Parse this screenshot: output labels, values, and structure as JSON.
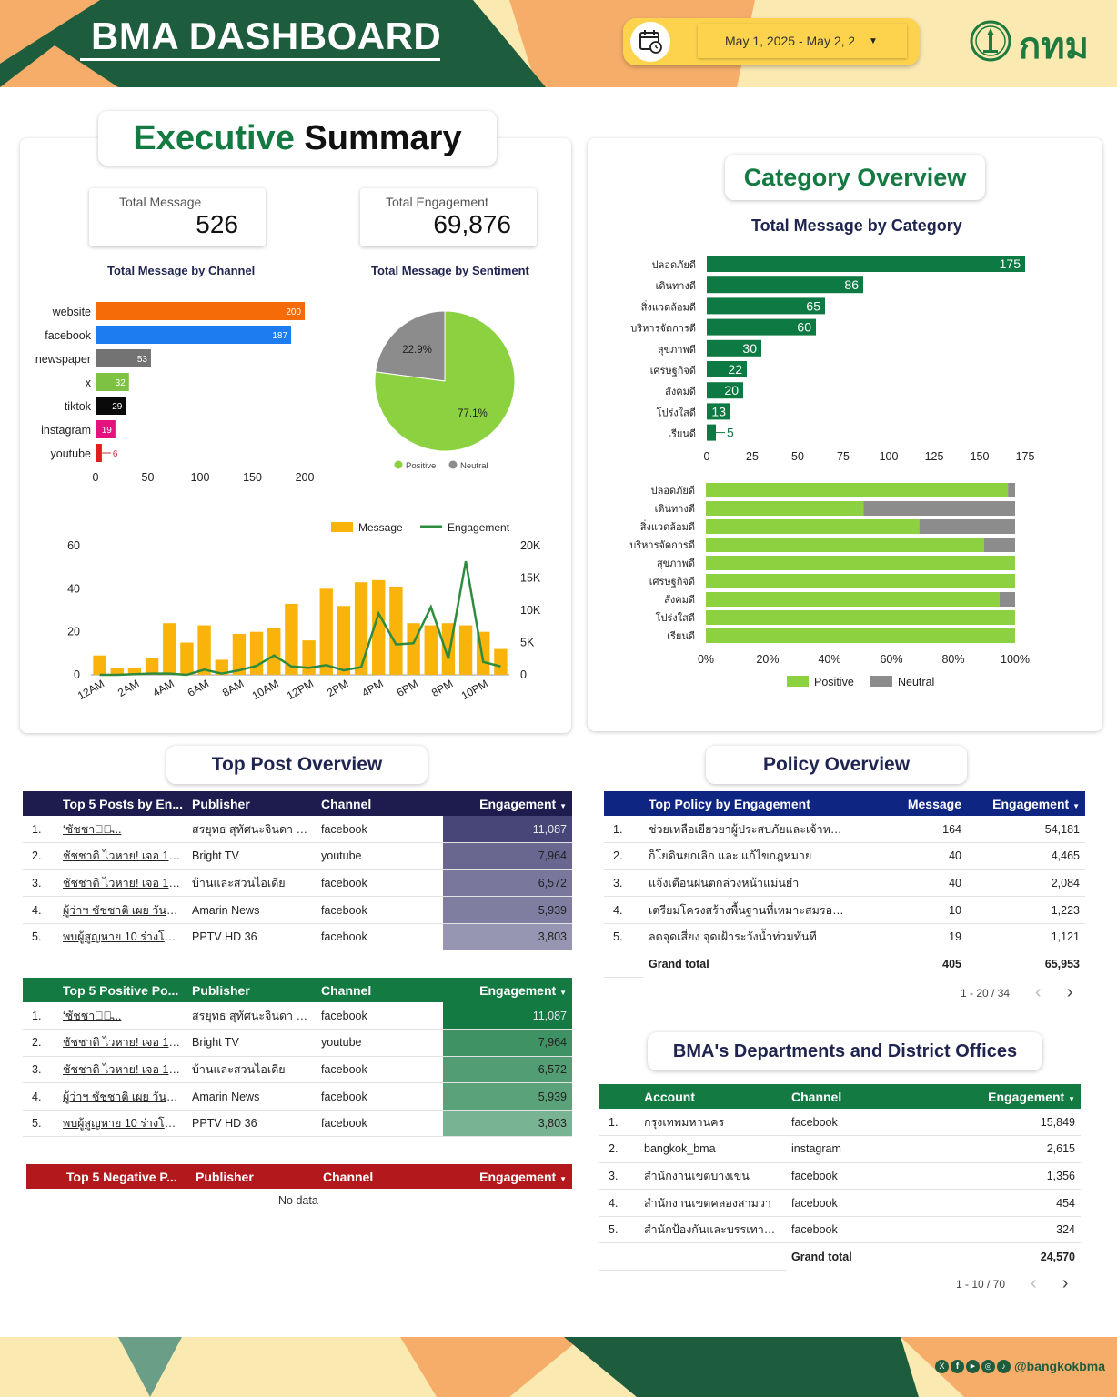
{
  "header": {
    "title": "BMA DASHBOARD",
    "date_range": "May 1, 2025 - May 2, 2",
    "logo_text": "กทม",
    "colors": {
      "green": "#1e5c3e",
      "orange": "#f6ad6a",
      "yellow": "#fbe9b2",
      "accent_yellow": "#fdd34d"
    }
  },
  "executive": {
    "title_part1": "Executive",
    "title_part2": "Summary",
    "kpis": [
      {
        "label": "Total Message",
        "value": "526"
      },
      {
        "label": "Total Engagement",
        "value": "69,876"
      }
    ]
  },
  "category": {
    "title": "Category Overview",
    "subtitle": "Total Message by Category"
  },
  "sections": {
    "top_post": "Top Post Overview",
    "policy": "Policy Overview",
    "departments": "BMA's Departments and District Offices"
  },
  "chart_data": [
    {
      "type": "bar",
      "orientation": "horizontal",
      "title": "Total Message by Channel",
      "categories": [
        "website",
        "facebook",
        "newspaper",
        "x",
        "tiktok",
        "instagram",
        "youtube"
      ],
      "values": [
        200,
        187,
        53,
        32,
        29,
        19,
        6
      ],
      "colors": [
        "#f46b08",
        "#1c7cf0",
        "#737373",
        "#7dc242",
        "#0a0a0a",
        "#e4117e",
        "#e21d1d"
      ],
      "xticks": [
        0,
        50,
        100,
        150,
        200
      ],
      "xlim": [
        0,
        200
      ]
    },
    {
      "type": "pie",
      "title": "Total Message by Sentiment",
      "slices": [
        {
          "name": "Positive",
          "value": 77.1,
          "label": "77.1%",
          "color": "#8cd13f"
        },
        {
          "name": "Neutral",
          "value": 22.9,
          "label": "22.9%",
          "color": "#8c8c8c"
        }
      ]
    },
    {
      "type": "bar+line",
      "x": [
        "12AM",
        "1AM",
        "2AM",
        "3AM",
        "4AM",
        "5AM",
        "6AM",
        "7AM",
        "8AM",
        "9AM",
        "10AM",
        "11AM",
        "12PM",
        "1PM",
        "2PM",
        "3PM",
        "4PM",
        "5PM",
        "6PM",
        "7PM",
        "8PM",
        "9PM",
        "10PM",
        "11PM"
      ],
      "xtick_labels": [
        "12AM",
        "2AM",
        "4AM",
        "6AM",
        "8AM",
        "10AM",
        "12PM",
        "2PM",
        "4PM",
        "6PM",
        "8PM",
        "10PM"
      ],
      "series": [
        {
          "name": "Message",
          "axis": "left",
          "color": "#f9b30a",
          "values": [
            9,
            3,
            3,
            8,
            24,
            15,
            23,
            7,
            19,
            20,
            22,
            33,
            16,
            40,
            32,
            43,
            44,
            41,
            24,
            23,
            24,
            23,
            20,
            12
          ]
        },
        {
          "name": "Engagement",
          "axis": "right",
          "color": "#2e8b3d",
          "values": [
            0,
            0,
            100,
            200,
            200,
            0,
            800,
            200,
            700,
            1400,
            3000,
            1300,
            1100,
            1500,
            700,
            1200,
            9500,
            4700,
            4900,
            10500,
            2500,
            17600,
            2000,
            1300
          ]
        }
      ],
      "yleft": {
        "lim": [
          0,
          60
        ],
        "ticks": [
          0,
          20,
          40,
          60
        ]
      },
      "yright": {
        "lim": [
          0,
          20000
        ],
        "ticks": [
          "0",
          "5K",
          "10K",
          "15K",
          "20K"
        ]
      }
    },
    {
      "type": "bar",
      "orientation": "horizontal",
      "title": "Total Message by Category",
      "categories": [
        "ปลอดภัยดี",
        "เดินทางดี",
        "สิ่งแวดล้อมดี",
        "บริหารจัดการดี",
        "สุขภาพดี",
        "เศรษฐกิจดี",
        "สังคมดี",
        "โปร่งใสดี",
        "เรียนดี"
      ],
      "values": [
        175,
        86,
        65,
        60,
        30,
        22,
        20,
        13,
        5
      ],
      "color": "#0e7a43",
      "xticks": [
        0,
        25,
        50,
        75,
        100,
        125,
        150,
        175
      ],
      "xlim": [
        0,
        175
      ]
    },
    {
      "type": "bar",
      "orientation": "horizontal",
      "stacked": "percent",
      "categories": [
        "ปลอดภัยดี",
        "เดินทางดี",
        "สิ่งแวดล้อมดี",
        "บริหารจัดการดี",
        "สุขภาพดี",
        "เศรษฐกิจดี",
        "สังคมดี",
        "โปร่งใสดี",
        "เรียนดี"
      ],
      "series": [
        {
          "name": "Positive",
          "color": "#8cd13f",
          "values": [
            97.7,
            51,
            69,
            90,
            100,
            100,
            95,
            100,
            100
          ]
        },
        {
          "name": "Neutral",
          "color": "#8c8c8c",
          "values": [
            2.3,
            49,
            31,
            10,
            0,
            0,
            5,
            0,
            0
          ]
        }
      ],
      "xticks": [
        "0%",
        "20%",
        "40%",
        "60%",
        "80%",
        "100%"
      ]
    }
  ],
  "tables": {
    "top_engagement": {
      "columns": [
        "Top 5 Posts by En...",
        "Publisher",
        "Channel",
        "Engagement"
      ],
      "header_color": "#1e1c4e",
      "rows": [
        {
          "idx": "1.",
          "post": "&#8216;ชัชชาติ&#821...",
          "publisher": "สรยุทธ สุทัศนะจินดา กรร...",
          "channel": "facebook",
          "engagement": "11,087",
          "level": 1.0
        },
        {
          "idx": "2.",
          "post": "ชัชชาติ ไวหาย! เจอ 10 ร่า...",
          "publisher": "Bright TV",
          "channel": "youtube",
          "engagement": "7,964",
          "level": 0.72
        },
        {
          "idx": "3.",
          "post": "ชัชชาติ ไวหาย! เจอ 10 ร่า...",
          "publisher": "บ้านและสวนไอเดีย",
          "channel": "facebook",
          "engagement": "6,572",
          "level": 0.59
        },
        {
          "idx": "4.",
          "post": "ผู้ว่าฯ ชัชชาติ เผย วันเดียว...",
          "publisher": "Amarin News",
          "channel": "facebook",
          "engagement": "5,939",
          "level": 0.54
        },
        {
          "idx": "5.",
          "post": "พบผู้สูญหาย 10 ร่างโซน ...",
          "publisher": "PPTV HD 36",
          "channel": "facebook",
          "engagement": "3,803",
          "level": 0.34
        }
      ]
    },
    "top_positive": {
      "columns": [
        "Top 5 Positive Po...",
        "Publisher",
        "Channel",
        "Engagement"
      ],
      "header_color": "#137a42",
      "rows": [
        {
          "idx": "1.",
          "post": "&#8216;ชัชชาติ&#821...",
          "publisher": "สรยุทธ สุทัศนะจินดา กรร...",
          "channel": "facebook",
          "engagement": "11,087",
          "level": 1.0
        },
        {
          "idx": "2.",
          "post": "ชัชชาติ ไวหาย! เจอ 10 ร่า...",
          "publisher": "Bright TV",
          "channel": "youtube",
          "engagement": "7,964",
          "level": 0.72
        },
        {
          "idx": "3.",
          "post": "ชัชชาติ ไวหาย! เจอ 10 ร่า...",
          "publisher": "บ้านและสวนไอเดีย",
          "channel": "facebook",
          "engagement": "6,572",
          "level": 0.59
        },
        {
          "idx": "4.",
          "post": "ผู้ว่าฯ ชัชชาติ เผย วันเดียว...",
          "publisher": "Amarin News",
          "channel": "facebook",
          "engagement": "5,939",
          "level": 0.54
        },
        {
          "idx": "5.",
          "post": "พบผู้สูญหาย 10 ร่างโซน ...",
          "publisher": "PPTV HD 36",
          "channel": "facebook",
          "engagement": "3,803",
          "level": 0.34
        }
      ]
    },
    "top_negative": {
      "columns": [
        "Top 5 Negative P...",
        "Publisher",
        "Channel",
        "Engagement"
      ],
      "header_color": "#b3191c",
      "no_data": "No data"
    },
    "policy": {
      "columns": [
        "Top Policy by Engagement",
        "Message",
        "Engagement"
      ],
      "header_color": "#0f2582",
      "rows": [
        {
          "idx": "1.",
          "policy": "ช่วยเหลือเยียวยาผู้ประสบภัยและเจ้าหน้า...",
          "message": "164",
          "engagement": "54,181"
        },
        {
          "idx": "2.",
          "policy": "ก็โยดินยกเลิก และ แก้ไขกฎหมาย",
          "message": "40",
          "engagement": "4,465"
        },
        {
          "idx": "3.",
          "policy": "แจ้งเตือนฝนตกล่วงหน้าแม่นยำ",
          "message": "40",
          "engagement": "2,084"
        },
        {
          "idx": "4.",
          "policy": "เตรียมโครงสร้างพื้นฐานที่เหมาะสมรองรับ...",
          "message": "10",
          "engagement": "1,223"
        },
        {
          "idx": "5.",
          "policy": "ลดจุดเสี่ยง จุดเฝ้าระวังน้ำท่วมทันที",
          "message": "19",
          "engagement": "1,121"
        }
      ],
      "grand_total_label": "Grand total",
      "total_message": "405",
      "total_engagement": "65,953",
      "pager": "1 - 20 / 34"
    },
    "departments": {
      "columns": [
        "Account",
        "Channel",
        "Engagement"
      ],
      "header_color": "#137a42",
      "rows": [
        {
          "idx": "1.",
          "account": "กรุงเทพมหานคร",
          "channel": "facebook",
          "engagement": "15,849"
        },
        {
          "idx": "2.",
          "account": "bangkok_bma",
          "channel": "instagram",
          "engagement": "2,615"
        },
        {
          "idx": "3.",
          "account": "สำนักงานเขตบางเขน",
          "channel": "facebook",
          "engagement": "1,356"
        },
        {
          "idx": "4.",
          "account": "สำนักงานเขตคลองสามวา",
          "channel": "facebook",
          "engagement": "454"
        },
        {
          "idx": "5.",
          "account": "สำนักป้องกันและบรรเทาสาธาร...",
          "channel": "facebook",
          "engagement": "324"
        }
      ],
      "grand_total_label": "Grand total",
      "total_engagement": "24,570",
      "pager": "1 - 10 / 70"
    }
  },
  "footer": {
    "handle": "@bangkokbma",
    "social_icons": [
      "x-icon",
      "facebook-icon",
      "youtube-icon",
      "instagram-icon",
      "tiktok-icon"
    ]
  }
}
